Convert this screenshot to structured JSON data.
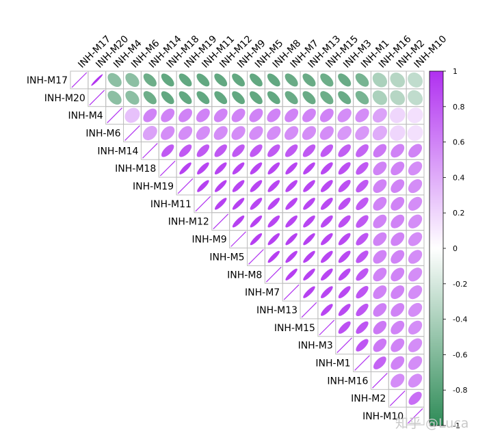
{
  "watermark": "知乎 @Luca",
  "chart_data": {
    "type": "heatmap",
    "style": "upper-triangular ellipse correlation matrix",
    "title": "",
    "variables": [
      "INH-M17",
      "INH-M20",
      "INH-M4",
      "INH-M6",
      "INH-M14",
      "INH-M18",
      "INH-M19",
      "INH-M11",
      "INH-M12",
      "INH-M9",
      "INH-M5",
      "INH-M8",
      "INH-M7",
      "INH-M13",
      "INH-M15",
      "INH-M3",
      "INH-M1",
      "INH-M16",
      "INH-M2",
      "INH-M10"
    ],
    "matrix": [
      [
        1.0,
        0.98,
        -0.55,
        -0.55,
        -0.7,
        -0.75,
        -0.75,
        -0.75,
        -0.75,
        -0.75,
        -0.75,
        -0.75,
        -0.72,
        -0.72,
        -0.7,
        -0.72,
        -0.65,
        -0.4,
        -0.35,
        -0.3
      ],
      [
        0.98,
        1.0,
        -0.55,
        -0.55,
        -0.7,
        -0.75,
        -0.75,
        -0.75,
        -0.75,
        -0.75,
        -0.75,
        -0.75,
        -0.72,
        -0.72,
        -0.7,
        -0.72,
        -0.65,
        -0.4,
        -0.35,
        -0.3
      ],
      [
        -0.55,
        -0.55,
        1.0,
        0.3,
        0.6,
        0.6,
        0.6,
        0.6,
        0.6,
        0.6,
        0.6,
        0.6,
        0.6,
        0.6,
        0.6,
        0.55,
        0.55,
        0.45,
        0.2,
        0.15
      ],
      [
        -0.55,
        -0.55,
        0.3,
        1.0,
        0.45,
        0.55,
        0.55,
        0.55,
        0.55,
        0.55,
        0.55,
        0.55,
        0.55,
        0.55,
        0.55,
        0.5,
        0.5,
        0.4,
        0.2,
        0.15
      ],
      [
        -0.7,
        -0.7,
        0.6,
        0.45,
        1.0,
        0.8,
        0.8,
        0.8,
        0.8,
        0.8,
        0.8,
        0.8,
        0.8,
        0.8,
        0.8,
        0.78,
        0.75,
        0.65,
        0.6,
        0.6
      ],
      [
        -0.75,
        -0.75,
        0.6,
        0.55,
        0.8,
        1.0,
        0.92,
        0.9,
        0.9,
        0.9,
        0.9,
        0.9,
        0.9,
        0.9,
        0.88,
        0.85,
        0.8,
        0.6,
        0.6,
        0.55
      ],
      [
        -0.75,
        -0.75,
        0.6,
        0.55,
        0.8,
        0.92,
        1.0,
        0.92,
        0.92,
        0.9,
        0.9,
        0.9,
        0.9,
        0.9,
        0.88,
        0.85,
        0.8,
        0.6,
        0.6,
        0.55
      ],
      [
        -0.75,
        -0.75,
        0.6,
        0.55,
        0.8,
        0.9,
        0.92,
        1.0,
        0.92,
        0.92,
        0.9,
        0.9,
        0.9,
        0.9,
        0.88,
        0.85,
        0.8,
        0.6,
        0.6,
        0.55
      ],
      [
        -0.75,
        -0.75,
        0.6,
        0.55,
        0.8,
        0.9,
        0.92,
        0.92,
        1.0,
        0.92,
        0.92,
        0.9,
        0.9,
        0.9,
        0.88,
        0.85,
        0.8,
        0.6,
        0.6,
        0.55
      ],
      [
        -0.75,
        -0.75,
        0.6,
        0.55,
        0.8,
        0.9,
        0.9,
        0.92,
        0.92,
        1.0,
        0.93,
        0.92,
        0.92,
        0.92,
        0.9,
        0.88,
        0.82,
        0.6,
        0.6,
        0.55
      ],
      [
        -0.75,
        -0.75,
        0.6,
        0.55,
        0.8,
        0.9,
        0.9,
        0.9,
        0.92,
        0.93,
        1.0,
        0.93,
        0.92,
        0.92,
        0.9,
        0.88,
        0.82,
        0.6,
        0.6,
        0.55
      ],
      [
        -0.75,
        -0.75,
        0.6,
        0.55,
        0.8,
        0.9,
        0.9,
        0.9,
        0.9,
        0.92,
        0.93,
        1.0,
        0.93,
        0.92,
        0.9,
        0.88,
        0.82,
        0.6,
        0.6,
        0.55
      ],
      [
        -0.72,
        -0.72,
        0.6,
        0.55,
        0.8,
        0.9,
        0.9,
        0.9,
        0.9,
        0.92,
        0.92,
        0.93,
        1.0,
        0.92,
        0.9,
        0.88,
        0.82,
        0.6,
        0.6,
        0.55
      ],
      [
        -0.72,
        -0.72,
        0.6,
        0.55,
        0.8,
        0.9,
        0.9,
        0.9,
        0.9,
        0.92,
        0.92,
        0.92,
        0.92,
        1.0,
        0.9,
        0.88,
        0.82,
        0.62,
        0.6,
        0.55
      ],
      [
        -0.7,
        -0.7,
        0.6,
        0.55,
        0.8,
        0.88,
        0.88,
        0.88,
        0.88,
        0.9,
        0.9,
        0.9,
        0.9,
        0.9,
        1.0,
        0.85,
        0.82,
        0.65,
        0.6,
        0.55
      ],
      [
        -0.72,
        -0.72,
        0.55,
        0.5,
        0.78,
        0.85,
        0.85,
        0.85,
        0.85,
        0.88,
        0.88,
        0.88,
        0.88,
        0.88,
        0.85,
        1.0,
        0.82,
        0.65,
        0.6,
        0.55
      ],
      [
        -0.65,
        -0.65,
        0.55,
        0.5,
        0.75,
        0.8,
        0.8,
        0.8,
        0.8,
        0.82,
        0.82,
        0.82,
        0.82,
        0.82,
        0.82,
        0.82,
        1.0,
        0.75,
        0.6,
        0.55
      ],
      [
        -0.4,
        -0.4,
        0.45,
        0.4,
        0.65,
        0.6,
        0.6,
        0.6,
        0.6,
        0.6,
        0.6,
        0.6,
        0.6,
        0.62,
        0.65,
        0.65,
        0.75,
        1.0,
        0.55,
        0.55
      ],
      [
        -0.35,
        -0.35,
        0.2,
        0.2,
        0.6,
        0.6,
        0.6,
        0.6,
        0.6,
        0.6,
        0.6,
        0.6,
        0.6,
        0.6,
        0.6,
        0.6,
        0.6,
        0.55,
        1.0,
        0.7
      ],
      [
        -0.3,
        -0.3,
        0.15,
        0.15,
        0.6,
        0.55,
        0.55,
        0.55,
        0.55,
        0.55,
        0.55,
        0.55,
        0.55,
        0.55,
        0.55,
        0.55,
        0.55,
        0.55,
        0.7,
        1.0
      ]
    ],
    "colorbar": {
      "range": [
        -1,
        1
      ],
      "ticks": [
        1,
        0.8,
        0.6,
        0.4,
        0.2,
        0,
        -0.2,
        -0.4,
        -0.6,
        -0.8,
        -1
      ],
      "tick_labels": [
        "1",
        "0.8",
        "0.6",
        "0.4",
        "0.2",
        "0",
        "-0.2",
        "-0.4",
        "-0.6",
        "-0.8",
        "-1"
      ],
      "colors": {
        "negative": "#2e8b57",
        "zero": "#ffffff",
        "positive": "#b030f0"
      }
    },
    "grid": true
  }
}
